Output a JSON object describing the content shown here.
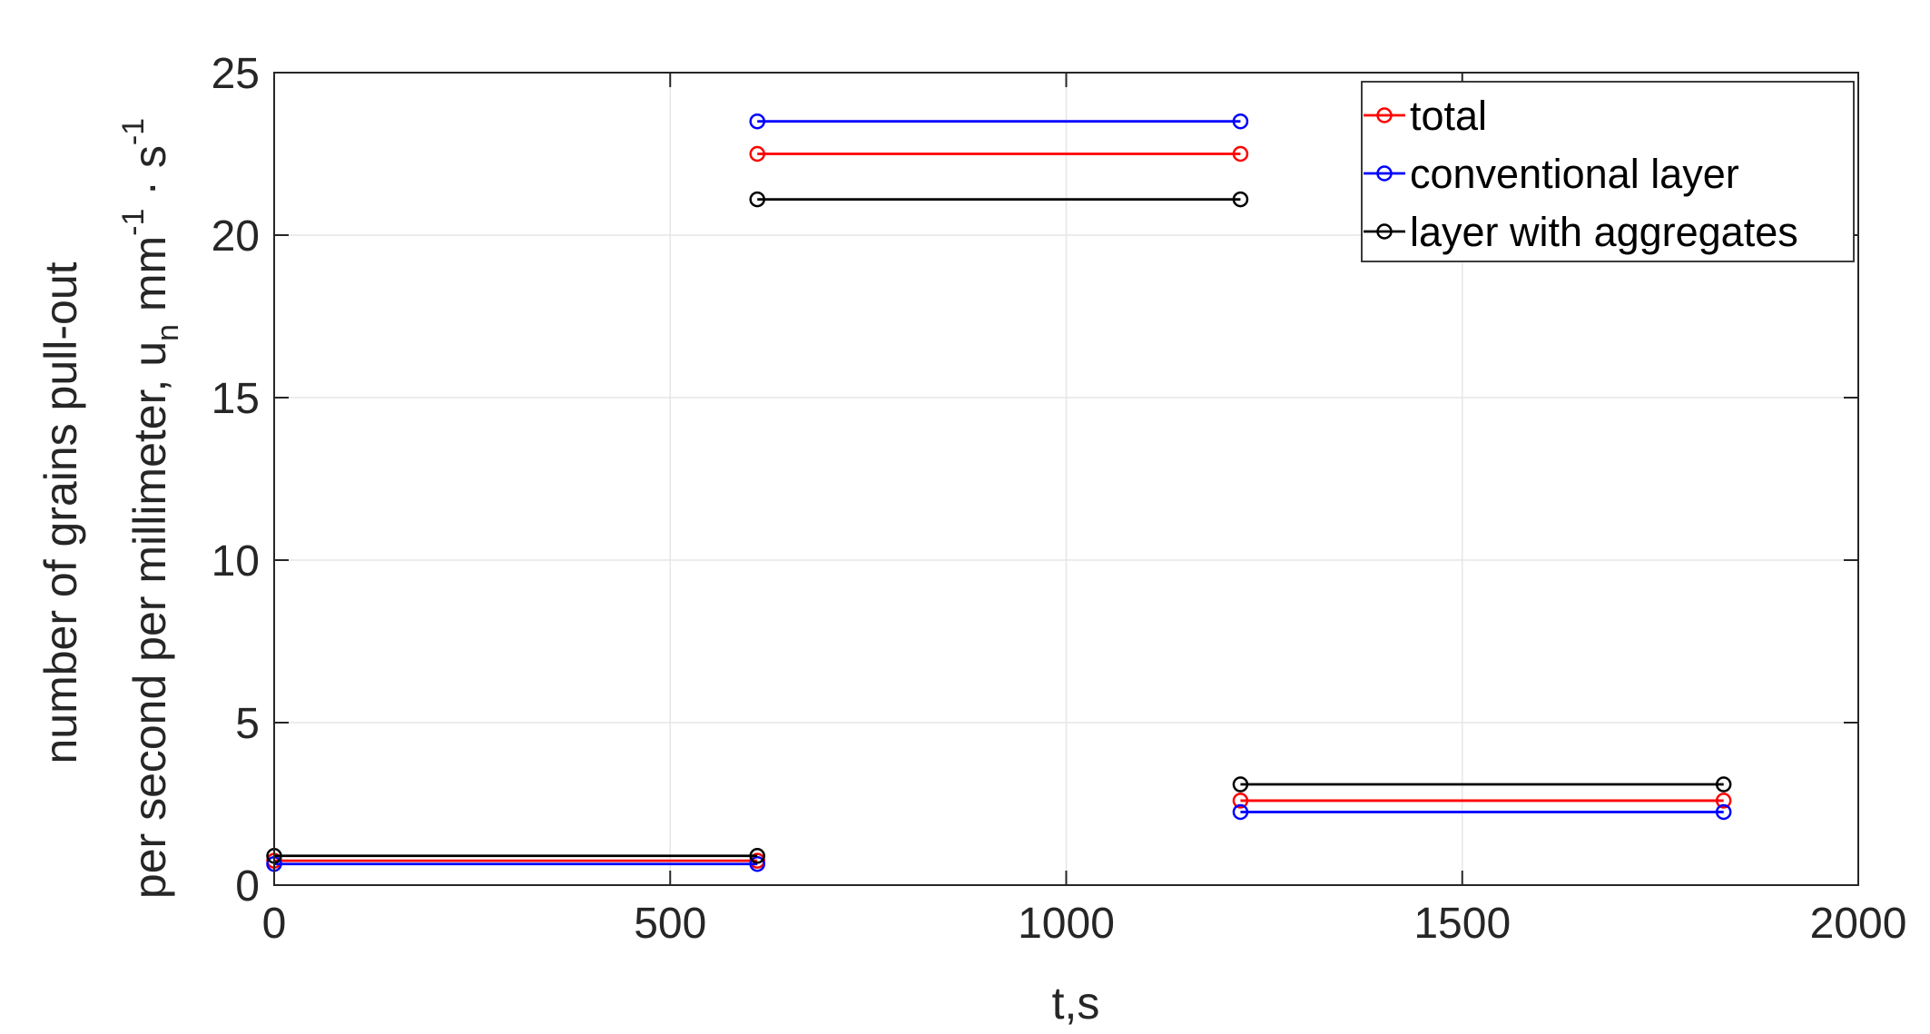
{
  "chart_data": {
    "type": "line",
    "xlabel": "t,s",
    "ylabel": {
      "line1": "number of grains pull-out",
      "line2_main": "per second per millimeter, u",
      "line2_sub": "n",
      "line2_unit_mm": " mm",
      "line2_exp1": "-1",
      "line2_dot_s": " · s",
      "line2_exp2": "-1"
    },
    "xlim": [
      0,
      2000
    ],
    "ylim": [
      0,
      25
    ],
    "xticks": [
      0,
      500,
      1000,
      1500,
      2000
    ],
    "xtick_labels": [
      "0",
      "500",
      "1000",
      "1500",
      "2000"
    ],
    "yticks": [
      0,
      5,
      10,
      15,
      20,
      25
    ],
    "ytick_labels": [
      "0",
      "5",
      "10",
      "15",
      "20",
      "25"
    ],
    "grid": true,
    "legend_position": "top-right",
    "marker": "open-circle",
    "series": [
      {
        "name": "total",
        "color": "#ff0000",
        "segments": [
          {
            "x": [
              0,
              610
            ],
            "y": [
              0.75,
              0.75
            ]
          },
          {
            "x": [
              610,
              1220
            ],
            "y": [
              22.5,
              22.5
            ]
          },
          {
            "x": [
              1220,
              1830
            ],
            "y": [
              2.6,
              2.6
            ]
          }
        ]
      },
      {
        "name": "conventional layer",
        "color": "#0000ff",
        "segments": [
          {
            "x": [
              0,
              610
            ],
            "y": [
              0.65,
              0.65
            ]
          },
          {
            "x": [
              610,
              1220
            ],
            "y": [
              23.5,
              23.5
            ]
          },
          {
            "x": [
              1220,
              1830
            ],
            "y": [
              2.25,
              2.25
            ]
          }
        ]
      },
      {
        "name": "layer with aggregates",
        "color": "#000000",
        "segments": [
          {
            "x": [
              0,
              610
            ],
            "y": [
              0.9,
              0.9
            ]
          },
          {
            "x": [
              610,
              1220
            ],
            "y": [
              21.1,
              21.1
            ]
          },
          {
            "x": [
              1220,
              1830
            ],
            "y": [
              3.1,
              3.1
            ]
          }
        ]
      }
    ]
  }
}
